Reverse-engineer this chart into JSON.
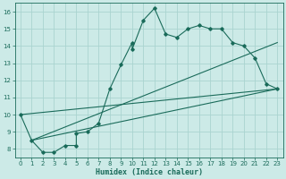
{
  "xlabel": "Humidex (Indice chaleur)",
  "bg_color": "#cceae7",
  "grid_color": "#aad4d0",
  "line_color": "#1a6b5a",
  "xlim": [
    -0.5,
    23.5
  ],
  "ylim": [
    7.5,
    16.5
  ],
  "xticks": [
    0,
    1,
    2,
    3,
    4,
    5,
    6,
    7,
    8,
    9,
    10,
    11,
    12,
    13,
    14,
    15,
    16,
    17,
    18,
    19,
    20,
    21,
    22,
    23
  ],
  "yticks": [
    8,
    9,
    10,
    11,
    12,
    13,
    14,
    15,
    16
  ],
  "main_x": [
    0,
    1,
    2,
    3,
    4,
    5,
    5,
    6,
    7,
    8,
    9,
    10,
    10,
    11,
    12,
    13,
    14,
    15,
    16,
    17,
    18,
    19,
    20,
    21,
    22,
    23
  ],
  "main_y": [
    10.0,
    8.5,
    7.8,
    7.8,
    8.2,
    8.2,
    8.9,
    9.0,
    9.5,
    11.5,
    12.9,
    14.2,
    13.8,
    15.5,
    16.2,
    14.7,
    14.5,
    15.0,
    15.2,
    15.0,
    15.0,
    14.2,
    14.0,
    13.3,
    11.8,
    11.5
  ],
  "line1_x": [
    1,
    23
  ],
  "line1_y": [
    8.5,
    11.5
  ],
  "line2_x": [
    1,
    23
  ],
  "line2_y": [
    8.5,
    14.2
  ],
  "line3_x": [
    0,
    23
  ],
  "line3_y": [
    10.0,
    11.5
  ]
}
